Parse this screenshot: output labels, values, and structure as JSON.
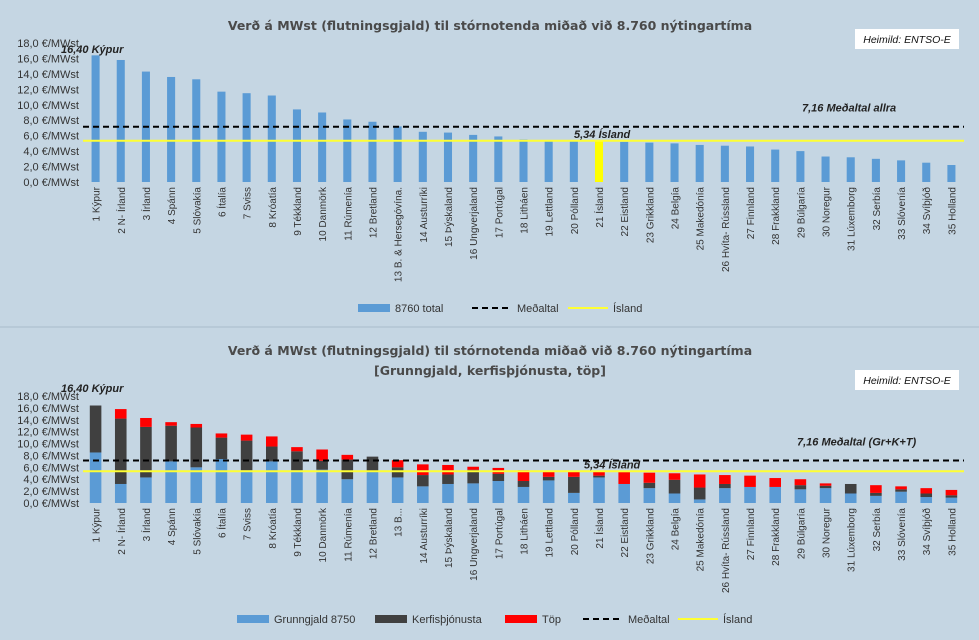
{
  "chart_data": [
    {
      "type": "bar",
      "title": "Verð á MWst (flutningsgjald) til stórnotenda miðað við 8.760 nýtingartíma",
      "source": "Heimild:  ENTSO-E",
      "categories": [
        "1 Kýpur",
        "2 N- Írland",
        "3 Írland",
        "4 Spánn",
        "5 Slóvakía",
        "6 Ítalía",
        "7 Sviss",
        "8 Króatía",
        "9 Tékkland",
        "10 Danmörk",
        "11 Rúmenía",
        "12 Bretland",
        "13 B. & Hersegóvína.",
        "14 Austurríki",
        "15 Þýskaland",
        "16 Ungverjaland",
        "17 Portúgal",
        "18 Litháen",
        "19 Lettland",
        "20 Pólland",
        "21 Ísland",
        "22 Eistland",
        "23 Grikkland",
        "24 Belgía",
        "25 Makedónía",
        "26 Hvíta- Rússland",
        "27 Finnland",
        "28 Frakkland",
        "29 Búlgaría",
        "30 Noregur",
        "31 Lúxemborg",
        "32 Serbía",
        "33 Slóvenía",
        "34 Svíþjóð",
        "35 Holland"
      ],
      "values": [
        16.4,
        15.8,
        14.3,
        13.6,
        13.3,
        11.7,
        11.5,
        11.2,
        9.4,
        9.0,
        8.1,
        7.8,
        7.2,
        6.5,
        6.4,
        6.1,
        5.9,
        5.5,
        5.4,
        5.4,
        5.34,
        5.2,
        5.1,
        5.0,
        4.8,
        4.7,
        4.6,
        4.2,
        4.0,
        3.3,
        3.2,
        3.0,
        2.8,
        2.5,
        2.2
      ],
      "highlight_category": "21 Ísland",
      "average": 7.16,
      "iceland": 5.34,
      "ylim": [
        0,
        18
      ],
      "ytick_step": 2,
      "yticks": [
        "0,0 €/MWst",
        "2,0 €/MWst",
        "4,0 €/MWst",
        "6,0 €/MWst",
        "8,0 €/MWst",
        "10,0 €/MWst",
        "12,0 €/MWst",
        "14,0 €/MWst",
        "16,0 €/MWst",
        "18,0 €/MWst"
      ],
      "annotations": {
        "max": "16,40 Kýpur",
        "avg": "7,16 Meðaltal allra",
        "is": "5,34 Ísland"
      },
      "legend": [
        "8760 total",
        "Meðaltal",
        "Ísland"
      ],
      "colors": {
        "bar": "#5b9bd5",
        "highlight": "#ffff00",
        "avg": "#000000",
        "is": "#ffff33"
      }
    },
    {
      "type": "stacked-bar",
      "title": "Verð á MWst (flutningsgjald) til stórnotenda miðað við 8.760 nýtingartíma",
      "subtitle": "[Grunngjald, kerfisþjónusta, töp]",
      "source": "Heimild:  ENTSO-E",
      "categories": [
        "1 Kýpur",
        "2 N- Írland",
        "3 Írland",
        "4 Spánn",
        "5 Slóvakía",
        "6 Ítalía",
        "7 Sviss",
        "8 Króatía",
        "9 Tékkland",
        "10 Danmörk",
        "11 Rúmenía",
        "12 Bretland",
        "13 B...",
        "14 Austurríki",
        "15 Þýskaland",
        "16 Ungverjaland",
        "17 Portúgal",
        "18 Litháen",
        "19 Lettland",
        "20 Pólland",
        "21 Ísland",
        "22 Eistland",
        "23 Grikkland",
        "24 Belgía",
        "25 Makedónía",
        "26 Hvíta- Rússland",
        "27 Finnland",
        "28 Frakkland",
        "29 Búlgaría",
        "30 Noregur",
        "31 Lúxemborg",
        "32 Serbía",
        "33 Slóvenía",
        "34 Svíþjóð",
        "35 Holland"
      ],
      "series": [
        {
          "name": "Grunngjald 8750",
          "color": "#5b9bd5",
          "values": [
            8.5,
            3.2,
            4.3,
            7.0,
            6.0,
            7.4,
            5.5,
            7.0,
            5.5,
            5.6,
            4.0,
            5.2,
            4.3,
            2.8,
            3.2,
            3.3,
            3.7,
            2.7,
            3.8,
            1.7,
            4.3,
            3.2,
            2.5,
            1.6,
            0.6,
            2.5,
            2.7,
            2.7,
            2.3,
            2.5,
            1.6,
            1.2,
            1.9,
            1.0,
            0.9
          ]
        },
        {
          "name": "Kerfisþjónusta",
          "color": "#404040",
          "values": [
            7.9,
            11.0,
            8.5,
            6.0,
            6.7,
            3.6,
            5.0,
            2.5,
            3.2,
            1.5,
            3.3,
            2.6,
            1.7,
            1.9,
            1.6,
            2.3,
            1.2,
            1.0,
            0.6,
            2.7,
            0.3,
            0.0,
            0.9,
            2.3,
            2.0,
            0.7,
            0.0,
            0.0,
            0.7,
            0.4,
            1.6,
            0.5,
            0.4,
            0.6,
            0.4
          ]
        },
        {
          "name": "Töp",
          "color": "#ff0000",
          "values": [
            0.0,
            1.6,
            1.5,
            0.6,
            0.6,
            0.7,
            1.0,
            1.7,
            0.7,
            1.9,
            0.8,
            0.0,
            1.2,
            1.8,
            1.6,
            0.5,
            1.0,
            1.8,
            1.0,
            1.0,
            0.74,
            2.0,
            1.7,
            1.1,
            2.2,
            1.5,
            1.9,
            1.5,
            1.0,
            0.4,
            0.0,
            1.3,
            0.5,
            0.9,
            0.9
          ]
        }
      ],
      "average": 7.16,
      "iceland": 5.34,
      "ylim": [
        0,
        18
      ],
      "ytick_step": 2,
      "yticks": [
        "0,0 €/MWst",
        "2,0 €/MWst",
        "4,0 €/MWst",
        "6,0 €/MWst",
        "8,0 €/MWst",
        "10,0 €/MWst",
        "12,0 €/MWst",
        "14,0 €/MWst",
        "16,0 €/MWst",
        "18,0 €/MWst"
      ],
      "annotations": {
        "max": "16,40 Kýpur",
        "avg": "7,16 Meðaltal (Gr+K+T)",
        "is": "5,34 Ísland"
      },
      "legend": [
        "Grunngjald 8750",
        "Kerfisþjónusta",
        "Töp",
        "Meðaltal",
        "Ísland"
      ],
      "colors": {
        "avg": "#000000",
        "is": "#ffff33"
      }
    }
  ]
}
